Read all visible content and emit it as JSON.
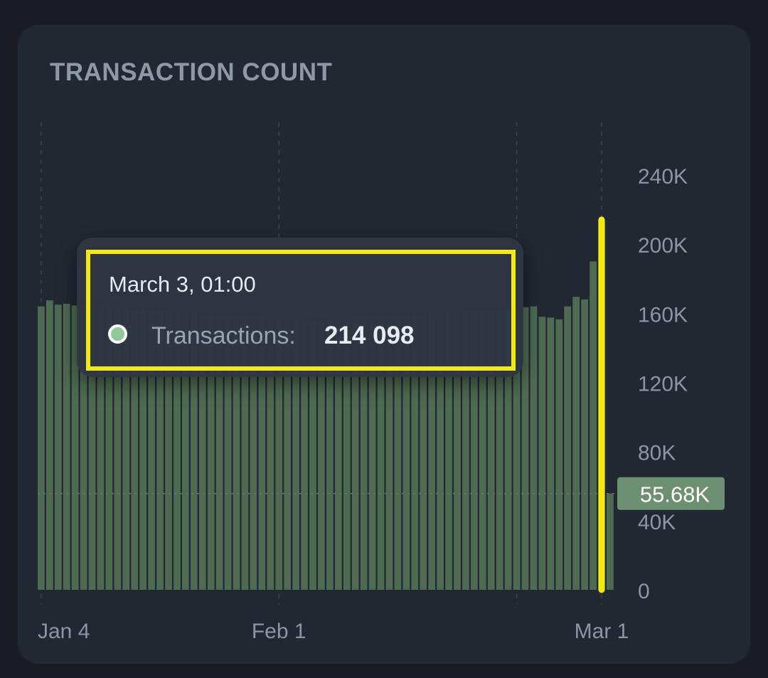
{
  "card": {
    "title": "TRANSACTION COUNT"
  },
  "tooltip": {
    "date": "March 3, 01:00",
    "series_label": "Transactions:",
    "value": "214 098",
    "dot_color": "#8fc99a",
    "highlight_color": "#f2ea0f"
  },
  "crosshair": {
    "price_label": "55.68K",
    "label_color": "#6d9072",
    "line_color": "#f2ea0f"
  },
  "chart_data": {
    "type": "bar",
    "title": "TRANSACTION COUNT",
    "series": [
      {
        "name": "Transactions",
        "color": "#4e6b52",
        "values": [
          164000,
          167500,
          165000,
          165500,
          164500,
          166000,
          165000,
          164000,
          163500,
          164000,
          163000,
          162500,
          162000,
          162000,
          161500,
          161000,
          160500,
          160000,
          160000,
          159500,
          159000,
          159000,
          158500,
          158000,
          158000,
          157500,
          157500,
          157000,
          157000,
          157000,
          156500,
          156500,
          156000,
          156000,
          156500,
          157000,
          157000,
          157500,
          157500,
          158000,
          158000,
          158500,
          158500,
          159000,
          159000,
          159500,
          159500,
          160000,
          160000,
          160500,
          161000,
          161000,
          161500,
          161500,
          162000,
          162500,
          163000,
          163500,
          164000,
          158000,
          157500,
          156500,
          164000,
          169500,
          168000,
          190000,
          214098,
          55680
        ]
      }
    ],
    "x_ticks": [
      "Jan 4",
      "Feb 1",
      "Mar 1"
    ],
    "y_ticks": [
      "0",
      "40K",
      "80K",
      "120K",
      "160K",
      "200K",
      "240K"
    ],
    "ylim": [
      0,
      240000
    ],
    "y_axis_position": "right",
    "grid": "vertical dashed lines at x ticks",
    "highlighted_point": {
      "label": "March 3, 01:00",
      "value": 214098
    },
    "current_value": 55680
  }
}
